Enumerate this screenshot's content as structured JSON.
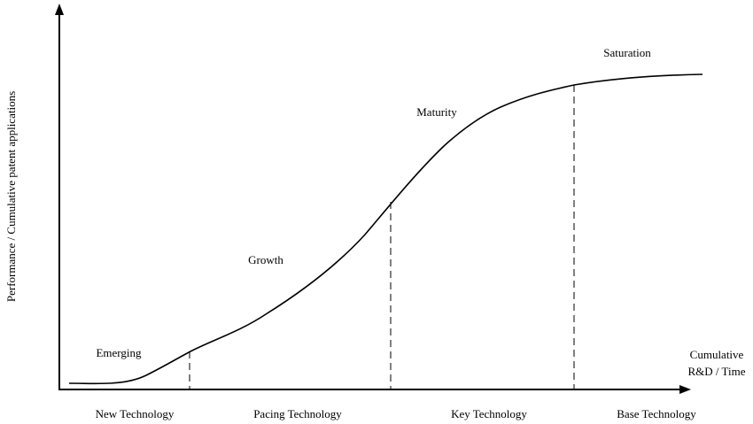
{
  "y_axis_label": "Performance / Cumulative patent applications",
  "x_axis_label_line1": "Cumulative",
  "x_axis_label_line2": "R&D / Time",
  "phases": {
    "emerging": "Emerging",
    "growth": "Growth",
    "maturity": "Maturity",
    "saturation": "Saturation"
  },
  "categories": {
    "new": "New Technology",
    "pacing": "Pacing Technology",
    "key": "Key Technology",
    "base": "Base Technology"
  },
  "colors": {
    "ink": "#000000",
    "background": "#ffffff"
  }
}
